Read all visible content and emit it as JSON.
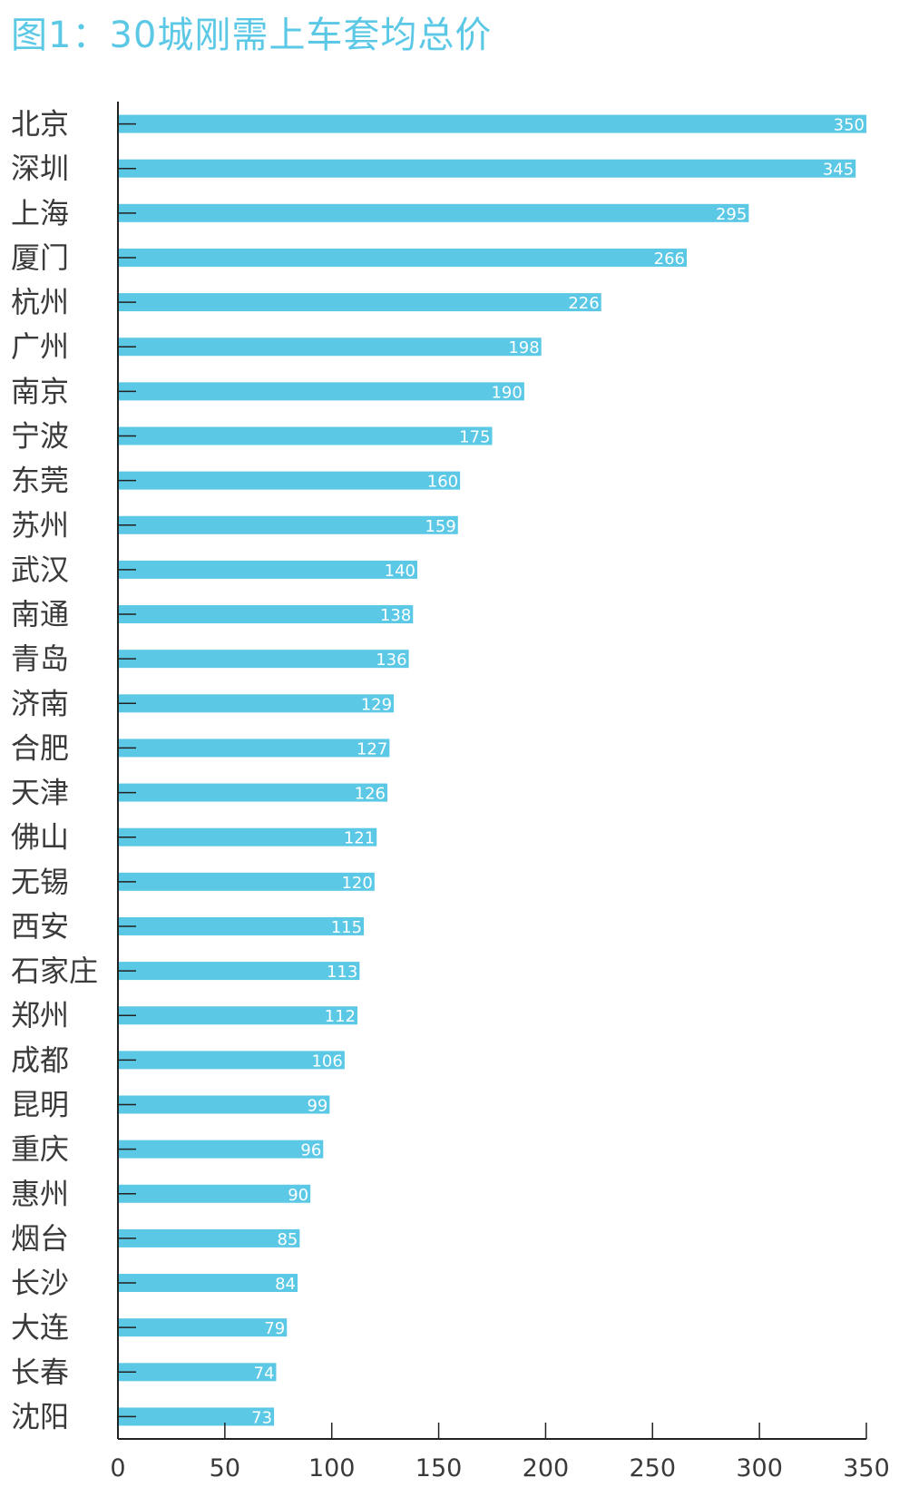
{
  "chart_data": {
    "type": "bar",
    "orientation": "horizontal",
    "title": "图1：30城刚需上车套均总价",
    "categories": [
      "北京",
      "深圳",
      "上海",
      "厦门",
      "杭州",
      "广州",
      "南京",
      "宁波",
      "东莞",
      "苏州",
      "武汉",
      "南通",
      "青岛",
      "济南",
      "合肥",
      "天津",
      "佛山",
      "无锡",
      "西安",
      "石家庄",
      "郑州",
      "成都",
      "昆明",
      "重庆",
      "惠州",
      "烟台",
      "长沙",
      "大连",
      "长春",
      "沈阳"
    ],
    "values": [
      350,
      345,
      295,
      266,
      226,
      198,
      190,
      175,
      160,
      159,
      140,
      138,
      136,
      129,
      127,
      126,
      121,
      120,
      115,
      113,
      112,
      106,
      99,
      96,
      90,
      85,
      84,
      79,
      74,
      73
    ],
    "xlim": [
      0,
      350
    ],
    "xticks": [
      0,
      50,
      100,
      150,
      200,
      250,
      300,
      350
    ],
    "grid": false,
    "legend": "none",
    "data_labels": true,
    "colors": {
      "bar": "#5bc8e6",
      "title": "#5bc8e6",
      "axis": "#222222",
      "data_label": "#ffffff",
      "text": "#3a3a3a"
    }
  }
}
